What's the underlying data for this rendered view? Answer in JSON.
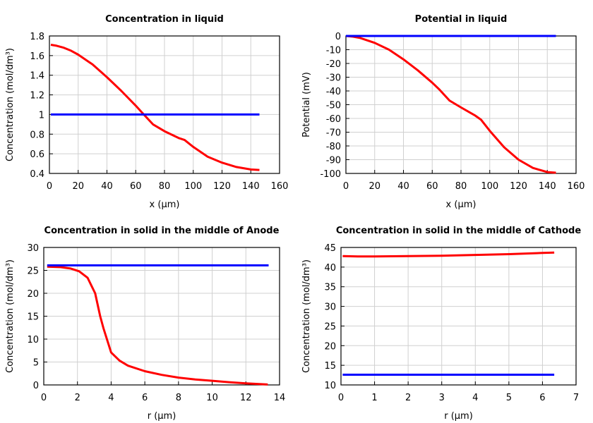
{
  "chart_data": [
    {
      "type": "line",
      "title": "Concentration in liquid",
      "xlabel": "x (µm)",
      "ylabel": "Concentration (mol/dm³)",
      "xlim": [
        0,
        160
      ],
      "ylim": [
        0.4,
        1.8
      ],
      "xticks": [
        "0",
        "20",
        "40",
        "60",
        "80",
        "100",
        "120",
        "140",
        "160"
      ],
      "yticks": [
        "0.4",
        "0.6",
        "0.8",
        "1",
        "1.2",
        "1.4",
        "1.6",
        "1.8"
      ],
      "grid": true,
      "series": [
        {
          "color": "#ff0000",
          "x": [
            1,
            5,
            10,
            15,
            20,
            30,
            40,
            50,
            60,
            65,
            72,
            80,
            90,
            94,
            100,
            110,
            120,
            130,
            140,
            146
          ],
          "y": [
            1.71,
            1.7,
            1.68,
            1.65,
            1.61,
            1.51,
            1.38,
            1.24,
            1.09,
            1.01,
            0.9,
            0.83,
            0.76,
            0.74,
            0.67,
            0.57,
            0.51,
            0.465,
            0.44,
            0.435
          ]
        },
        {
          "color": "#0000ff",
          "x": [
            1,
            146
          ],
          "y": [
            1,
            1
          ]
        }
      ]
    },
    {
      "type": "line",
      "title": "Potential in liquid",
      "xlabel": "x (µm)",
      "ylabel": "Potential (mV)",
      "xlim": [
        0,
        160
      ],
      "ylim": [
        -100,
        0
      ],
      "xticks": [
        "0",
        "20",
        "40",
        "60",
        "80",
        "100",
        "120",
        "140",
        "160"
      ],
      "yticks": [
        "-100",
        "-90",
        "-80",
        "-70",
        "-60",
        "-50",
        "-40",
        "-30",
        "-20",
        "-10",
        "0"
      ],
      "grid": true,
      "series": [
        {
          "color": "#ff0000",
          "x": [
            0,
            5,
            10,
            20,
            30,
            40,
            50,
            60,
            65,
            72,
            80,
            90,
            94,
            100,
            110,
            120,
            130,
            140,
            146
          ],
          "y": [
            0,
            -0.5,
            -1.5,
            -5,
            -10,
            -17,
            -25,
            -34,
            -39,
            -47,
            -52,
            -58,
            -61,
            -69,
            -81,
            -90,
            -96,
            -99,
            -99.5
          ]
        },
        {
          "color": "#0000ff",
          "x": [
            0,
            146
          ],
          "y": [
            0,
            0
          ]
        }
      ]
    },
    {
      "type": "line",
      "title": "Concentration in solid in the middle of Anode",
      "xlabel": "r (µm)",
      "ylabel": "Concentration (mol/dm³)",
      "xlim": [
        0,
        14
      ],
      "ylim": [
        0,
        30
      ],
      "xticks": [
        "0",
        "2",
        "4",
        "6",
        "8",
        "10",
        "12",
        "14"
      ],
      "yticks": [
        "0",
        "5",
        "10",
        "15",
        "20",
        "25",
        "30"
      ],
      "grid": true,
      "series": [
        {
          "color": "#ff0000",
          "x": [
            0.2,
            1,
            1.6,
            2.1,
            2.6,
            3.05,
            3.35,
            3.55,
            4,
            4.5,
            5,
            6,
            7,
            8,
            9,
            10,
            11,
            12,
            13.3
          ],
          "y": [
            25.8,
            25.7,
            25.4,
            24.8,
            23.4,
            20,
            15,
            12.3,
            7.1,
            5.3,
            4.2,
            3,
            2.2,
            1.6,
            1.2,
            0.9,
            0.6,
            0.35,
            0.1
          ]
        },
        {
          "color": "#0000ff",
          "x": [
            0.2,
            13.35
          ],
          "y": [
            26.1,
            26.1
          ]
        }
      ]
    },
    {
      "type": "line",
      "title": "Concentration in solid in the middle of Cathode",
      "xlabel": "r (µm)",
      "ylabel": "Concentration (mol/dm³)",
      "xlim": [
        0,
        7
      ],
      "ylim": [
        10,
        45
      ],
      "xticks": [
        "0",
        "1",
        "2",
        "3",
        "4",
        "5",
        "6",
        "7"
      ],
      "yticks": [
        "10",
        "15",
        "20",
        "25",
        "30",
        "35",
        "40",
        "45"
      ],
      "grid": true,
      "series": [
        {
          "color": "#ff0000",
          "x": [
            0.05,
            0.5,
            1,
            2,
            3,
            4,
            5,
            6,
            6.35
          ],
          "y": [
            42.8,
            42.7,
            42.7,
            42.8,
            42.9,
            43.1,
            43.3,
            43.6,
            43.7
          ]
        },
        {
          "color": "#0000ff",
          "x": [
            0.05,
            6.35
          ],
          "y": [
            12.6,
            12.6
          ]
        }
      ]
    }
  ]
}
